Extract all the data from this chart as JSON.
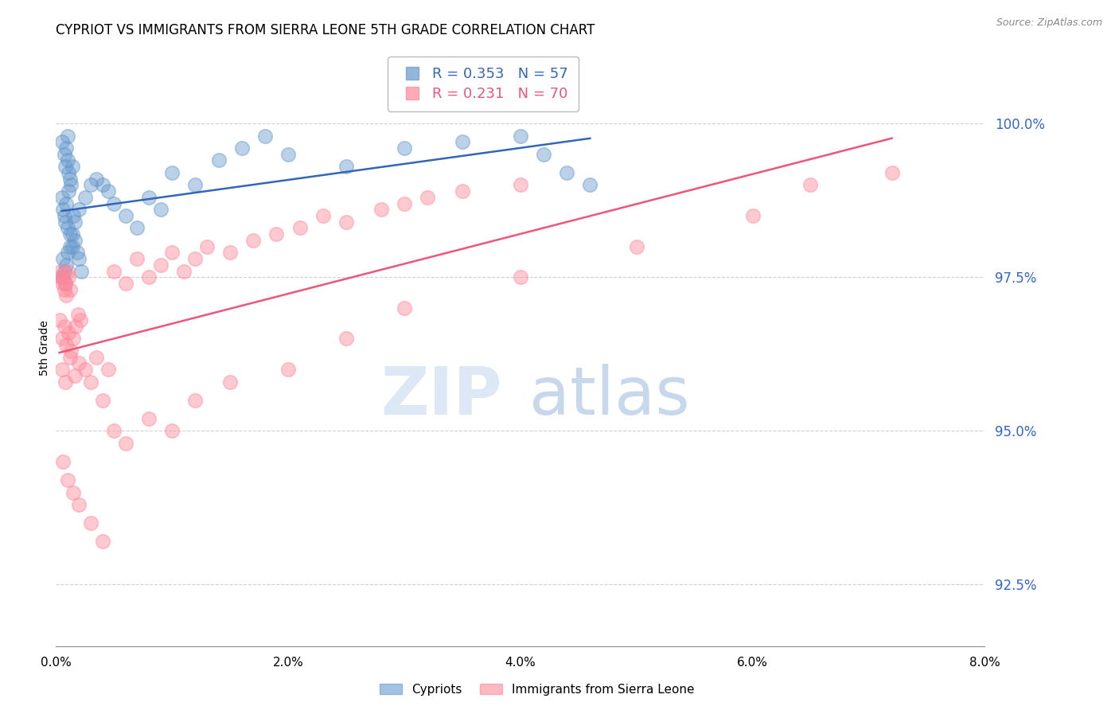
{
  "title": "CYPRIOT VS IMMIGRANTS FROM SIERRA LEONE 5TH GRADE CORRELATION CHART",
  "source": "Source: ZipAtlas.com",
  "ylabel": "5th Grade",
  "xlim": [
    0.0,
    8.0
  ],
  "ylim": [
    91.5,
    101.2
  ],
  "yticks": [
    92.5,
    95.0,
    97.5,
    100.0
  ],
  "R_blue": 0.353,
  "N_blue": 57,
  "R_pink": 0.231,
  "N_pink": 70,
  "legend_blue": "Cypriots",
  "legend_pink": "Immigrants from Sierra Leone",
  "blue_color": "#6699CC",
  "pink_color": "#FF8899",
  "blue_line_color": "#3366BB",
  "pink_line_color": "#EE5577",
  "blue_x": [
    0.05,
    0.07,
    0.08,
    0.09,
    0.1,
    0.1,
    0.11,
    0.12,
    0.13,
    0.14,
    0.05,
    0.06,
    0.07,
    0.08,
    0.09,
    0.1,
    0.11,
    0.12,
    0.14,
    0.15,
    0.16,
    0.18,
    0.2,
    0.22,
    0.05,
    0.06,
    0.07,
    0.08,
    0.09,
    0.1,
    0.12,
    0.14,
    0.16,
    0.2,
    0.25,
    0.3,
    0.35,
    0.4,
    0.45,
    0.5,
    0.6,
    0.7,
    0.8,
    0.9,
    1.0,
    1.2,
    1.4,
    1.6,
    1.8,
    2.0,
    2.5,
    3.0,
    3.5,
    4.0,
    4.2,
    4.4,
    4.6
  ],
  "blue_y": [
    99.7,
    99.5,
    99.3,
    99.6,
    99.8,
    99.4,
    99.2,
    99.1,
    99.0,
    99.3,
    98.8,
    98.6,
    98.5,
    98.4,
    98.7,
    98.3,
    98.9,
    98.2,
    98.0,
    98.5,
    98.1,
    97.9,
    97.8,
    97.6,
    97.5,
    97.8,
    97.6,
    97.4,
    97.7,
    97.9,
    98.0,
    98.2,
    98.4,
    98.6,
    98.8,
    99.0,
    99.1,
    99.0,
    98.9,
    98.7,
    98.5,
    98.3,
    98.8,
    98.6,
    99.2,
    99.0,
    99.4,
    99.6,
    99.8,
    99.5,
    99.3,
    99.6,
    99.7,
    99.8,
    99.5,
    99.2,
    99.0
  ],
  "pink_x": [
    0.03,
    0.04,
    0.05,
    0.06,
    0.07,
    0.08,
    0.09,
    0.1,
    0.11,
    0.12,
    0.03,
    0.05,
    0.07,
    0.09,
    0.11,
    0.13,
    0.15,
    0.17,
    0.19,
    0.21,
    0.05,
    0.08,
    0.12,
    0.16,
    0.2,
    0.25,
    0.3,
    0.35,
    0.4,
    0.45,
    0.5,
    0.6,
    0.7,
    0.8,
    0.9,
    1.0,
    1.1,
    1.2,
    1.3,
    1.5,
    1.7,
    1.9,
    2.1,
    2.3,
    2.5,
    2.8,
    3.0,
    3.2,
    3.5,
    4.0,
    0.06,
    0.1,
    0.15,
    0.2,
    0.3,
    0.4,
    0.5,
    0.6,
    0.8,
    1.0,
    1.2,
    1.5,
    2.0,
    2.5,
    3.0,
    4.0,
    5.0,
    6.0,
    6.5,
    7.2
  ],
  "pink_y": [
    97.5,
    97.6,
    97.4,
    97.5,
    97.3,
    97.4,
    97.2,
    97.6,
    97.5,
    97.3,
    96.8,
    96.5,
    96.7,
    96.4,
    96.6,
    96.3,
    96.5,
    96.7,
    96.9,
    96.8,
    96.0,
    95.8,
    96.2,
    95.9,
    96.1,
    96.0,
    95.8,
    96.2,
    95.5,
    96.0,
    97.6,
    97.4,
    97.8,
    97.5,
    97.7,
    97.9,
    97.6,
    97.8,
    98.0,
    97.9,
    98.1,
    98.2,
    98.3,
    98.5,
    98.4,
    98.6,
    98.7,
    98.8,
    98.9,
    99.0,
    94.5,
    94.2,
    94.0,
    93.8,
    93.5,
    93.2,
    95.0,
    94.8,
    95.2,
    95.0,
    95.5,
    95.8,
    96.0,
    96.5,
    97.0,
    97.5,
    98.0,
    98.5,
    99.0,
    99.2
  ]
}
